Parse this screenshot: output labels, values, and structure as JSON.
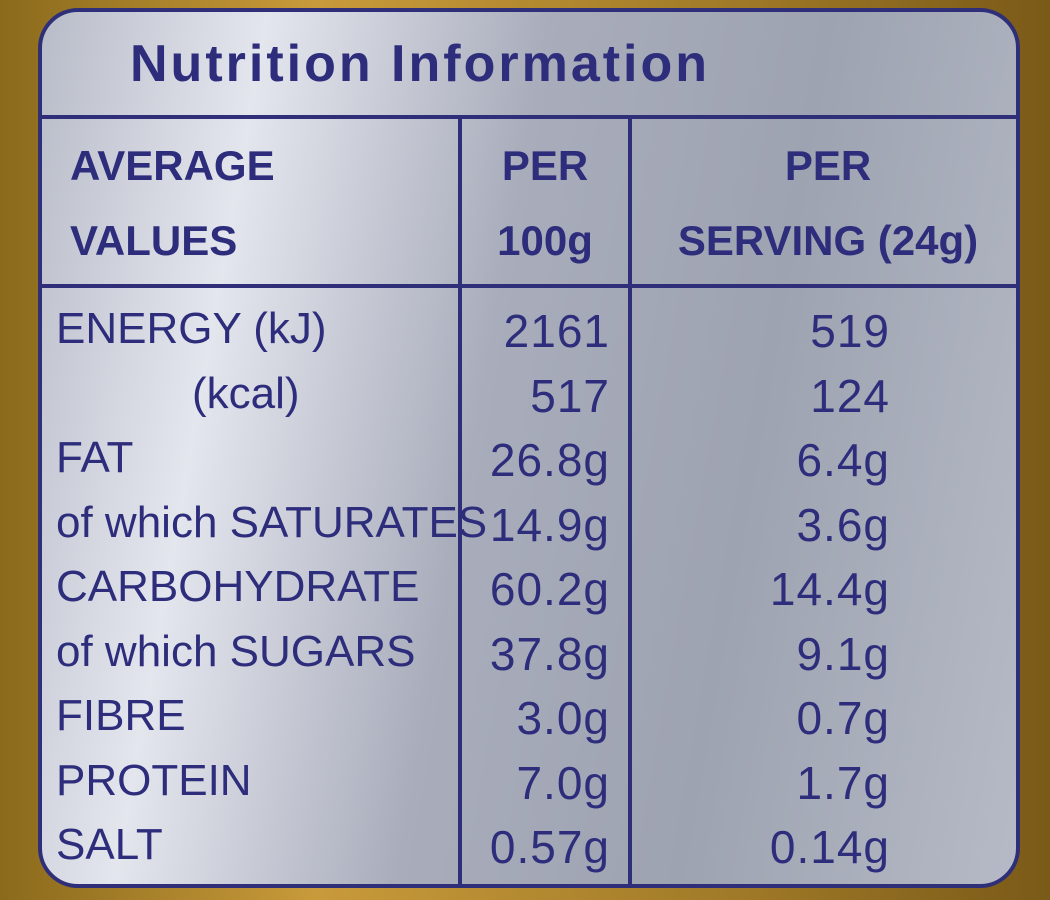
{
  "title": "Nutrition Information",
  "table": {
    "header": [
      [
        "AVERAGE",
        "VALUES"
      ],
      [
        "PER",
        "100g"
      ],
      [
        "PER",
        "SERVING (24g)"
      ]
    ],
    "rows": [
      [
        "ENERGY (kJ)",
        "2161",
        "519"
      ],
      [
        "(kcal)",
        "517",
        "124"
      ],
      [
        "FAT",
        "26.8g",
        "6.4g"
      ],
      [
        "of which SATURATES",
        "14.9g",
        "3.6g"
      ],
      [
        "CARBOHYDRATE",
        "60.2g",
        "14.4g"
      ],
      [
        "of which SUGARS",
        "37.8g",
        "9.1g"
      ],
      [
        "FIBRE",
        "3.0g",
        "0.7g"
      ],
      [
        "PROTEIN",
        "7.0g",
        "1.7g"
      ],
      [
        "SALT",
        "0.57g",
        "0.14g"
      ]
    ]
  }
}
